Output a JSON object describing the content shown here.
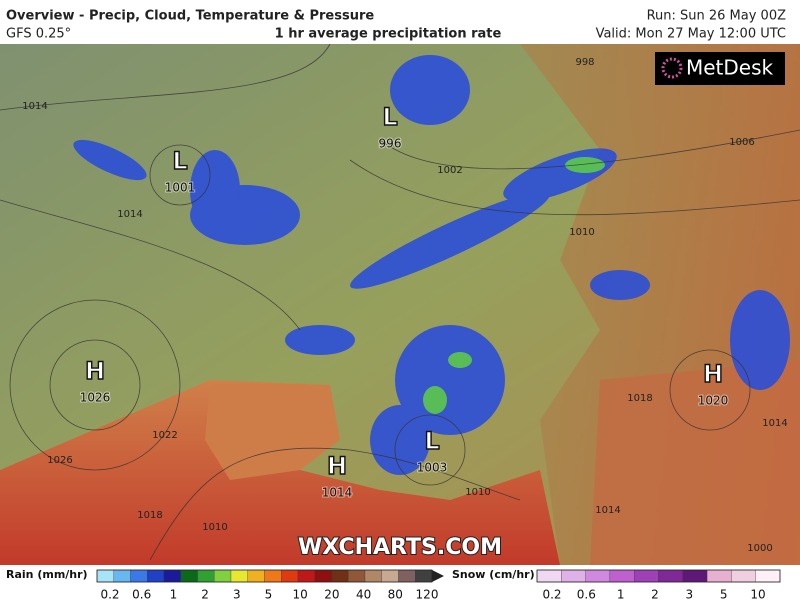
{
  "header": {
    "title": "Overview - Precip, Cloud, Temperature & Pressure",
    "model": "GFS 0.25°",
    "subtitle": "1 hr average precipitation rate",
    "run": "Run: Sun 26 May 00Z",
    "valid": "Valid: Mon 27 May 12:00 UTC"
  },
  "logo": "MetDesk",
  "watermark": "WXCHARTS.COM",
  "pressure_centers": [
    {
      "symbol": "H",
      "value": "1026"
    },
    {
      "symbol": "L",
      "value": "1001"
    },
    {
      "symbol": "L",
      "value": "996"
    },
    {
      "symbol": "H",
      "value": "1014"
    },
    {
      "symbol": "L",
      "value": "1003"
    },
    {
      "symbol": "H",
      "value": "1020"
    }
  ],
  "isobar_labels": [
    "1014",
    "1014",
    "998",
    "1002",
    "1006",
    "1010",
    "1022",
    "1026",
    "1018",
    "1010",
    "1018",
    "1014",
    "1010",
    "1014",
    "1000"
  ],
  "legend": {
    "rain": {
      "title": "Rain (mm/hr)",
      "ticks": [
        "0.2",
        "0.6",
        "1",
        "2",
        "3",
        "5",
        "10",
        "20",
        "40",
        "80",
        "120"
      ]
    },
    "snow": {
      "title": "Snow (cm/hr)",
      "ticks": [
        "0.2",
        "0.6",
        "1",
        "2",
        "3",
        "5",
        "10"
      ]
    }
  }
}
